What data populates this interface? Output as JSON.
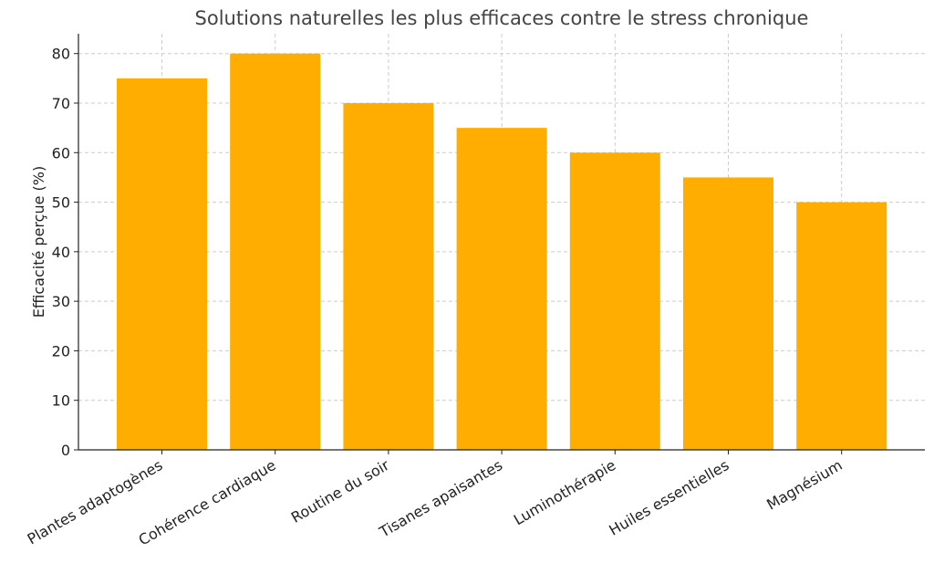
{
  "chart_data": {
    "type": "bar",
    "title": "Solutions naturelles les plus efficaces contre le stress chronique",
    "xlabel": "",
    "ylabel": "Efficacité perçue (%)",
    "categories": [
      "Plantes adaptogènes",
      "Cohérence cardiaque",
      "Routine du soir",
      "Tisanes apaisantes",
      "Luminothérapie",
      "Huiles essentielles",
      "Magnésium"
    ],
    "values": [
      75,
      80,
      70,
      65,
      60,
      55,
      50
    ],
    "ylim": [
      0,
      84
    ],
    "yticks": [
      0,
      10,
      20,
      30,
      40,
      50,
      60,
      70,
      80
    ],
    "bar_color": "#FFAE00",
    "grid": true
  }
}
